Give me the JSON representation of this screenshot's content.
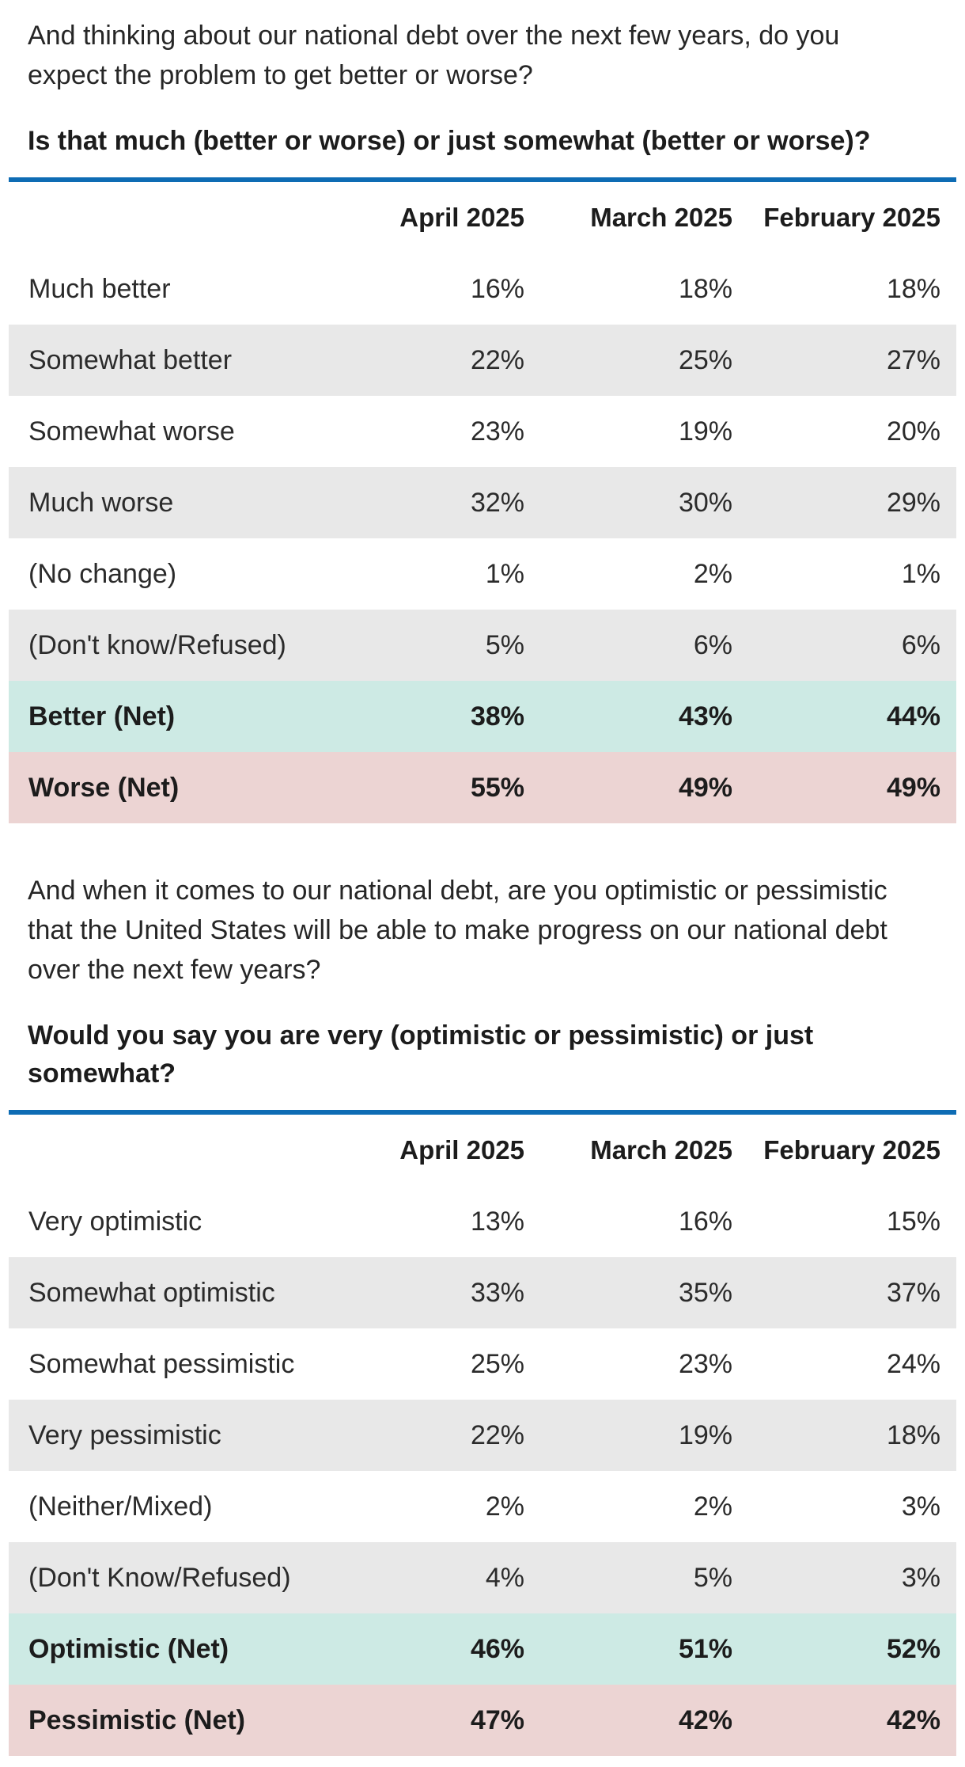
{
  "styles": {
    "accent_blue": "#0e6cb4",
    "alt_row_bg": "#e8e8e8",
    "net_better_bg": "#cdeae4",
    "net_worse_bg": "#ecd4d3",
    "text_color": "#2b2b2b"
  },
  "section1": {
    "question": "And thinking about our national debt over the next few years, do you\nexpect the problem to get better or worse?",
    "subquestion": "Is that much (better or worse) or just somewhat (better or worse)?",
    "table": {
      "columns": [
        "April 2025",
        "March 2025",
        "February 2025"
      ],
      "rows": [
        {
          "label": "Much better",
          "values": [
            "16%",
            "18%",
            "18%"
          ]
        },
        {
          "label": "Somewhat better",
          "values": [
            "22%",
            "25%",
            "27%"
          ]
        },
        {
          "label": "Somewhat worse",
          "values": [
            "23%",
            "19%",
            "20%"
          ]
        },
        {
          "label": "Much worse",
          "values": [
            "32%",
            "30%",
            "29%"
          ]
        },
        {
          "label": "(No change)",
          "values": [
            "1%",
            "2%",
            "1%"
          ]
        },
        {
          "label": "(Don't know/Refused)",
          "values": [
            "5%",
            "6%",
            "6%"
          ]
        },
        {
          "label": "Better (Net)",
          "values": [
            "38%",
            "43%",
            "44%"
          ]
        },
        {
          "label": "Worse (Net)",
          "values": [
            "55%",
            "49%",
            "49%"
          ]
        }
      ]
    }
  },
  "section2": {
    "question": "And when it comes to our national debt, are you optimistic or pessimistic\nthat the United States will be able to make progress on our national debt\nover the next few years?",
    "subquestion": "Would you say you are very (optimistic or pessimistic) or just\nsomewhat?",
    "table": {
      "columns": [
        "April 2025",
        "March 2025",
        "February 2025"
      ],
      "rows": [
        {
          "label": "Very optimistic",
          "values": [
            "13%",
            "16%",
            "15%"
          ]
        },
        {
          "label": "Somewhat optimistic",
          "values": [
            "33%",
            "35%",
            "37%"
          ]
        },
        {
          "label": "Somewhat pessimistic",
          "values": [
            "25%",
            "23%",
            "24%"
          ]
        },
        {
          "label": "Very pessimistic",
          "values": [
            "22%",
            "19%",
            "18%"
          ]
        },
        {
          "label": "(Neither/Mixed)",
          "values": [
            "2%",
            "2%",
            "3%"
          ]
        },
        {
          "label": "(Don't Know/Refused)",
          "values": [
            "4%",
            "5%",
            "3%"
          ]
        },
        {
          "label": "Optimistic (Net)",
          "values": [
            "46%",
            "51%",
            "52%"
          ]
        },
        {
          "label": "Pessimistic (Net)",
          "values": [
            "47%",
            "42%",
            "42%"
          ]
        }
      ]
    }
  }
}
